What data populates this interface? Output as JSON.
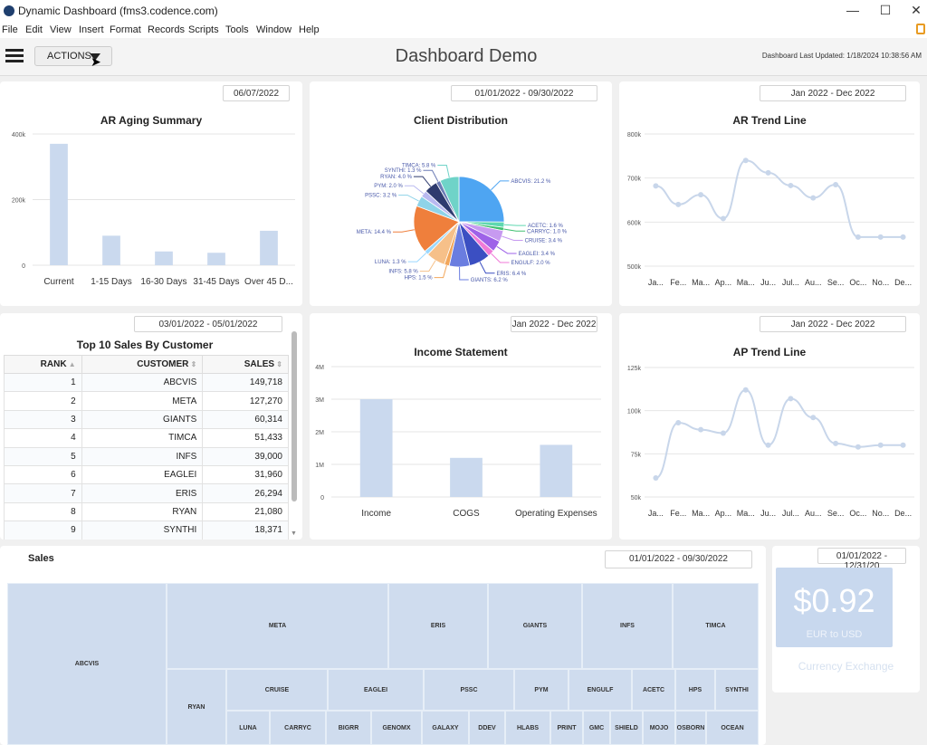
{
  "window": {
    "title": "Dynamic Dashboard (fms3.codence.com)",
    "minimize": "—",
    "maximize": "☐",
    "close": "✕"
  },
  "menu": [
    "File",
    "Edit",
    "View",
    "Insert",
    "Format",
    "Records",
    "Scripts",
    "Tools",
    "Window",
    "Help"
  ],
  "toolbar": {
    "actions_label": "ACTIONS",
    "title": "Dashboard Demo",
    "last_updated": "Dashboard Last Updated: 1/18/2024 10:38:56 AM"
  },
  "colors": {
    "bar": "#cad9ee",
    "line": "#c8d6ea",
    "kpi": "#c8d8ee"
  },
  "ar_aging": {
    "date_range": "06/07/2022",
    "chart_data": {
      "type": "bar",
      "title": "AR Aging Summary",
      "categories": [
        "Current",
        "1-15 Days",
        "16-30 Days",
        "31-45 Days",
        "Over 45 D..."
      ],
      "values": [
        370000,
        90000,
        42000,
        38000,
        105000
      ],
      "yticks": [
        "0",
        "200k",
        "400k"
      ],
      "ylim": [
        0,
        400000
      ]
    }
  },
  "client_distribution": {
    "date_range": "01/01/2022 - 09/30/2022",
    "chart_data": {
      "type": "pie",
      "title": "Client Distribution",
      "slices": [
        {
          "label": "ABCVIS: 21.2 %",
          "value": 21.2,
          "color": "#4ea5f2"
        },
        {
          "label": "ACETC: 1.6 %",
          "value": 1.6,
          "color": "#5fd8b0"
        },
        {
          "label": "CARRYC: 1.0 %",
          "value": 1.0,
          "color": "#40c070"
        },
        {
          "label": "CRUISE: 3.4 %",
          "value": 3.4,
          "color": "#c79af0"
        },
        {
          "label": "EAGLEI: 3.4 %",
          "value": 3.4,
          "color": "#9e62e8"
        },
        {
          "label": "ENGULF: 2.0 %",
          "value": 2.0,
          "color": "#f07ad8"
        },
        {
          "label": "ERIS: 6.4 %",
          "value": 6.4,
          "color": "#3b4fc2"
        },
        {
          "label": "GIANTS: 6.2 %",
          "value": 6.2,
          "color": "#6a7de0"
        },
        {
          "label": "HPS: 1.5 %",
          "value": 1.5,
          "color": "#f2a65a"
        },
        {
          "label": "INFS: 5.8 %",
          "value": 5.8,
          "color": "#f6c089"
        },
        {
          "label": "LUNA: 1.3 %",
          "value": 1.3,
          "color": "#9ad8ff"
        },
        {
          "label": "META: 14.4 %",
          "value": 14.4,
          "color": "#ef7f3c"
        },
        {
          "label": "PSSC: 3.2 %",
          "value": 3.2,
          "color": "#8fd3e8"
        },
        {
          "label": "PYM: 2.0 %",
          "value": 2.0,
          "color": "#b9b9f0"
        },
        {
          "label": "RYAN: 4.0 %",
          "value": 4.0,
          "color": "#2e3a6e"
        },
        {
          "label": "SYNTHI: 1.3 %",
          "value": 1.3,
          "color": "#6c7cb5"
        },
        {
          "label": "TIMCA: 5.8 %",
          "value": 5.8,
          "color": "#6fd3c8"
        }
      ]
    }
  },
  "ar_trend": {
    "date_range": "Jan 2022 - Dec 2022",
    "chart_data": {
      "type": "line",
      "title": "AR Trend Line",
      "x": [
        "Ja...",
        "Fe...",
        "Ma...",
        "Ap...",
        "Ma...",
        "Ju...",
        "Jul...",
        "Au...",
        "Se...",
        "Oc...",
        "No...",
        "De..."
      ],
      "values": [
        682000,
        640000,
        662000,
        608000,
        740000,
        712000,
        683000,
        655000,
        685000,
        566000,
        566000,
        566000
      ],
      "yticks": [
        "500k",
        "600k",
        "700k",
        "800k"
      ],
      "ylim": [
        500000,
        800000
      ]
    }
  },
  "top_sales": {
    "title": "Top 10 Sales By Customer",
    "date_range": "03/01/2022 - 05/01/2022",
    "columns": [
      "RANK",
      "CUSTOMER",
      "SALES"
    ],
    "rows": [
      {
        "rank": "1",
        "customer": "ABCVIS",
        "sales": "149,718"
      },
      {
        "rank": "2",
        "customer": "META",
        "sales": "127,270"
      },
      {
        "rank": "3",
        "customer": "GIANTS",
        "sales": "60,314"
      },
      {
        "rank": "4",
        "customer": "TIMCA",
        "sales": "51,433"
      },
      {
        "rank": "5",
        "customer": "INFS",
        "sales": "39,000"
      },
      {
        "rank": "6",
        "customer": "EAGLEI",
        "sales": "31,960"
      },
      {
        "rank": "7",
        "customer": "ERIS",
        "sales": "26,294"
      },
      {
        "rank": "8",
        "customer": "RYAN",
        "sales": "21,080"
      },
      {
        "rank": "9",
        "customer": "SYNTHI",
        "sales": "18,371"
      }
    ]
  },
  "income_statement": {
    "date_range": "Jan 2022 - Dec 2022",
    "chart_data": {
      "type": "bar",
      "title": "Income Statement",
      "categories": [
        "Income",
        "COGS",
        "Operating Expenses"
      ],
      "values": [
        3000000,
        1200000,
        1600000
      ],
      "yticks": [
        "0",
        "1M",
        "2M",
        "3M",
        "4M"
      ],
      "ylim": [
        0,
        4000000
      ]
    }
  },
  "ap_trend": {
    "date_range": "Jan 2022 - Dec 2022",
    "chart_data": {
      "type": "line",
      "title": "AP Trend Line",
      "x": [
        "Ja...",
        "Fe...",
        "Ma...",
        "Ap...",
        "Ma...",
        "Ju...",
        "Jul...",
        "Au...",
        "Se...",
        "Oc...",
        "No...",
        "De..."
      ],
      "values": [
        61000,
        93000,
        89000,
        87000,
        112000,
        80000,
        107000,
        96000,
        81000,
        79000,
        80000,
        80000
      ],
      "yticks": [
        "50k",
        "75k",
        "100k",
        "125k"
      ],
      "ylim": [
        50000,
        125000
      ]
    }
  },
  "sales": {
    "title": "Sales",
    "date_range": "01/01/2022 - 09/30/2022",
    "customers": [
      "ABCVIS",
      "META",
      "ERIS",
      "GIANTS",
      "INFS",
      "TIMCA",
      "RYAN",
      "CRUISE",
      "EAGLEI",
      "PSSC",
      "PYM",
      "ENGULF",
      "ACETC",
      "HPS",
      "SYNTHI",
      "LUNA",
      "CARRYC",
      "BIGRR",
      "GENOMX",
      "GALAXY",
      "DDEV",
      "HLABS",
      "PRINT",
      "GMC",
      "SHIELD",
      "MOJO",
      "OSBORN",
      "OCEAN"
    ]
  },
  "currency": {
    "date_range": "01/01/2022 - 12/31/20",
    "value": "$0.92",
    "pair": "EUR to USD",
    "caption": "Currency Exchange"
  }
}
